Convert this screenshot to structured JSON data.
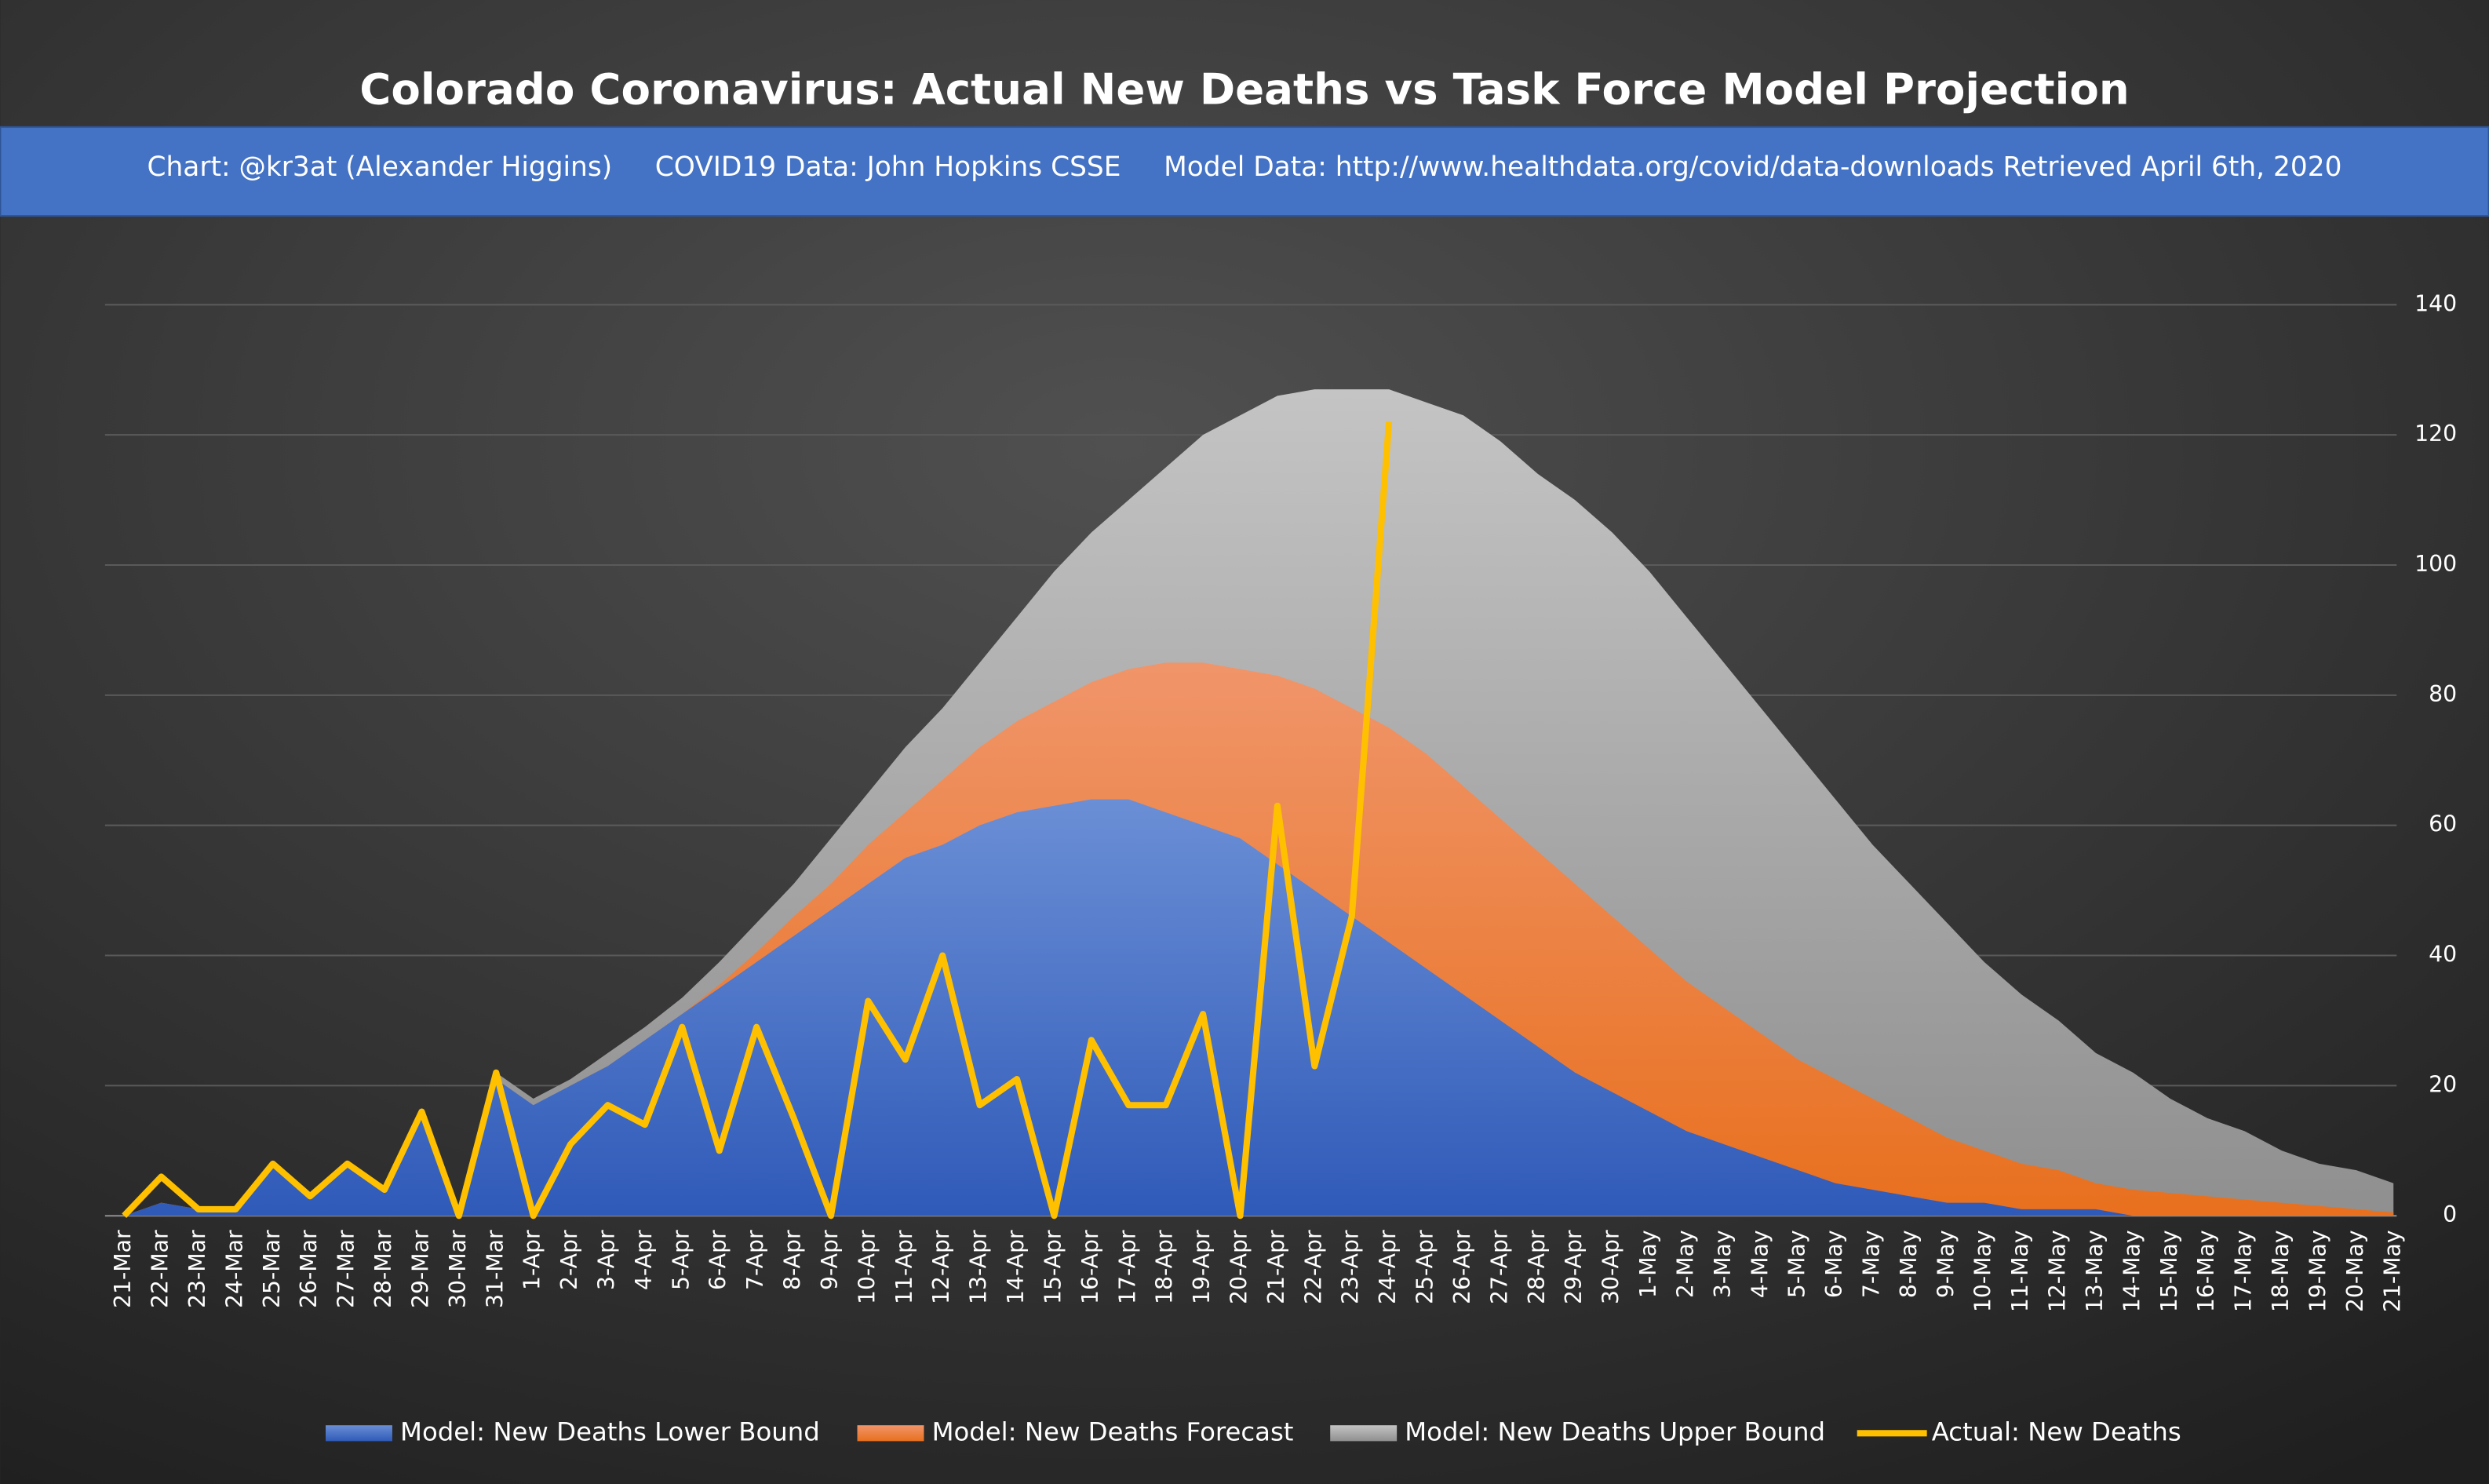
{
  "chart_data": {
    "type": "area",
    "title": "Colorado Coronavirus: Actual New Deaths vs Task Force Model Projection",
    "subtitle": "Chart: @kr3at (Alexander Higgins)     COVID19 Data: John Hopkins CSSE     Model Data: http://www.healthdata.org/covid/data-downloads Retrieved April 6th, 2020",
    "categories": [
      "21-Mar",
      "22-Mar",
      "23-Mar",
      "24-Mar",
      "25-Mar",
      "26-Mar",
      "27-Mar",
      "28-Mar",
      "29-Mar",
      "30-Mar",
      "31-Mar",
      "1-Apr",
      "2-Apr",
      "3-Apr",
      "4-Apr",
      "5-Apr",
      "6-Apr",
      "7-Apr",
      "8-Apr",
      "9-Apr",
      "10-Apr",
      "11-Apr",
      "12-Apr",
      "13-Apr",
      "14-Apr",
      "15-Apr",
      "16-Apr",
      "17-Apr",
      "18-Apr",
      "19-Apr",
      "20-Apr",
      "21-Apr",
      "22-Apr",
      "23-Apr",
      "24-Apr",
      "25-Apr",
      "26-Apr",
      "27-Apr",
      "28-Apr",
      "29-Apr",
      "30-Apr",
      "1-May",
      "2-May",
      "3-May",
      "4-May",
      "5-May",
      "6-May",
      "7-May",
      "8-May",
      "9-May",
      "10-May",
      "11-May",
      "12-May",
      "13-May",
      "14-May",
      "15-May",
      "16-May",
      "17-May",
      "18-May",
      "19-May",
      "20-May",
      "21-May"
    ],
    "series": [
      {
        "name": "Model: New Deaths Lower Bound",
        "type": "area",
        "color": "#4472c4",
        "values": [
          0,
          2,
          1,
          1,
          8,
          3,
          8,
          4,
          16,
          0,
          21,
          17,
          20,
          23,
          27,
          31,
          35,
          39,
          43,
          47,
          51,
          55,
          57,
          60,
          62,
          63,
          64,
          64,
          62,
          60,
          58,
          54,
          50,
          46,
          42,
          38,
          34,
          30,
          26,
          22,
          19,
          16,
          13,
          11,
          9,
          7,
          5,
          4,
          3,
          2,
          2,
          1,
          1,
          1,
          0,
          0,
          0,
          0,
          0,
          0,
          0,
          0
        ]
      },
      {
        "name": "Model: New Deaths Forecast",
        "type": "area",
        "color": "#ed7d31",
        "values": [
          0,
          2,
          1,
          1,
          8,
          3,
          8,
          4,
          16,
          0,
          21,
          16.5,
          20,
          23,
          27,
          31,
          35.5,
          40.5,
          46,
          51,
          57,
          62,
          67,
          72,
          76,
          79,
          82,
          84,
          85,
          85,
          84,
          83,
          81,
          78,
          75,
          71,
          66,
          61,
          56,
          51,
          46,
          41,
          36,
          32,
          28,
          24,
          21,
          18,
          15,
          12,
          10,
          8,
          7,
          5,
          4,
          3.5,
          3,
          2.5,
          2,
          1.5,
          1,
          0.5
        ]
      },
      {
        "name": "Model: New Deaths Upper Bound",
        "type": "area",
        "color": "#a5a5a5",
        "values": [
          0,
          2,
          1,
          1,
          8,
          3,
          8,
          4,
          16,
          0,
          22,
          18,
          21,
          25,
          29,
          33.5,
          39,
          45,
          51,
          58,
          65,
          72,
          78,
          85,
          92,
          99,
          105,
          110,
          115,
          120,
          123,
          126,
          127,
          127,
          127,
          125,
          123,
          119,
          114,
          110,
          105,
          99,
          92,
          85,
          78,
          71,
          64,
          57,
          51,
          45,
          39,
          34,
          30,
          25,
          22,
          18,
          15,
          13,
          10,
          8,
          7,
          5
        ]
      },
      {
        "name": "Actual: New Deaths",
        "type": "line",
        "color": "#ffc000",
        "values": [
          0,
          6,
          1,
          1,
          8,
          3,
          8,
          4,
          16,
          0,
          22,
          0,
          11,
          17,
          14,
          29,
          10,
          29,
          15,
          0,
          33,
          24,
          40,
          17,
          21,
          0,
          27,
          17,
          17,
          31,
          0,
          63,
          23,
          46,
          122,
          null,
          null,
          null,
          null,
          null,
          null,
          null,
          null,
          null,
          null,
          null,
          null,
          null,
          null,
          null,
          null,
          null,
          null,
          null,
          null,
          null,
          null,
          null,
          null,
          null,
          null,
          null
        ]
      }
    ],
    "ylim": [
      0,
      140
    ],
    "yticks": [
      0,
      20,
      40,
      60,
      80,
      100,
      120,
      140
    ],
    "grid": true,
    "legend": "bottom"
  }
}
